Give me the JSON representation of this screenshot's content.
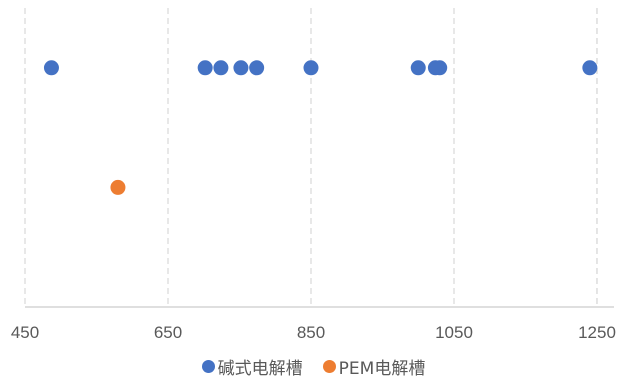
{
  "chart_data": {
    "type": "scatter",
    "title": "",
    "xlabel": "",
    "ylabel": "",
    "xlim": [
      450,
      1300
    ],
    "xticks": [
      450,
      650,
      850,
      1050,
      1250
    ],
    "ylim": [
      0,
      2
    ],
    "grid": "vertical dashed",
    "legend_position": "bottom",
    "series": [
      {
        "name": "碱式电解槽",
        "color": "#4472C4",
        "x": [
          487,
          702,
          724,
          752,
          774,
          850,
          1000,
          1024,
          1030,
          1240
        ],
        "y": [
          1.6,
          1.6,
          1.6,
          1.6,
          1.6,
          1.6,
          1.6,
          1.6,
          1.6,
          1.6
        ]
      },
      {
        "name": "PEM电解槽",
        "color": "#ED7D31",
        "x": [
          580
        ],
        "y": [
          0.8
        ]
      }
    ]
  }
}
